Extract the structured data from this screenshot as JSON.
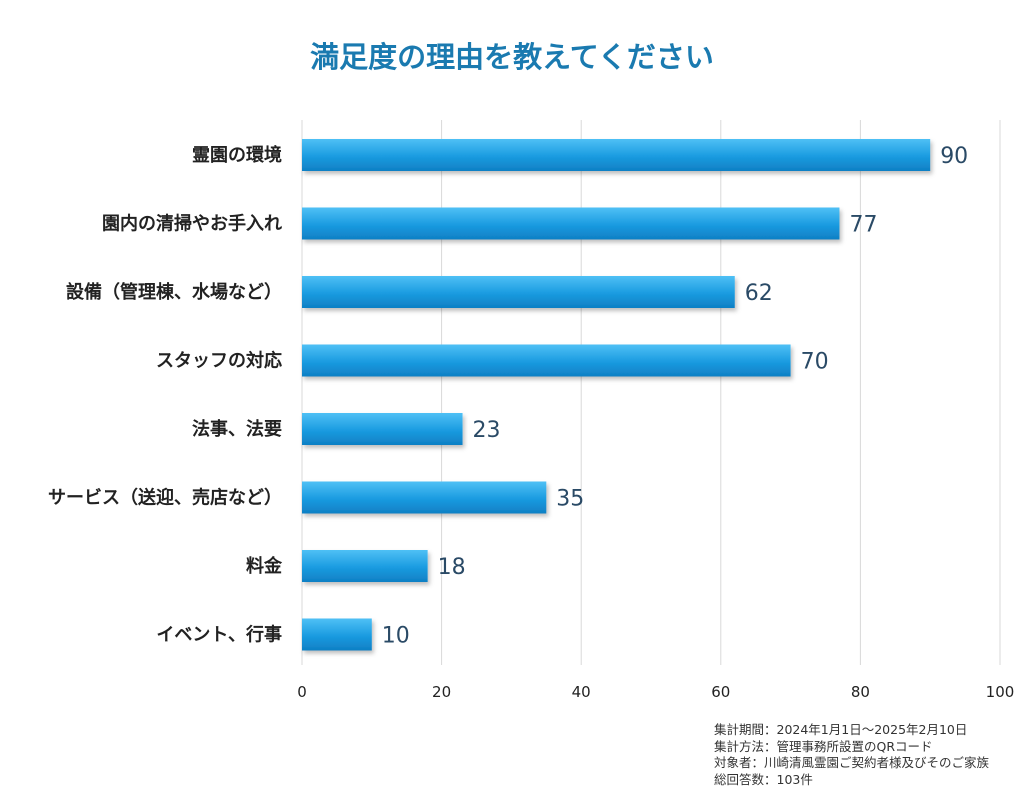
{
  "chart_data": {
    "type": "bar",
    "orientation": "horizontal",
    "title": "満足度の理由を教えてください",
    "categories": [
      "霊園の環境",
      "園内の清掃やお手入れ",
      "設備（管理棟、水場など）",
      "スタッフの対応",
      "法事、法要",
      "サービス（送迎、売店など）",
      "料金",
      "イベント、行事"
    ],
    "values": [
      90,
      77,
      62,
      70,
      23,
      35,
      18,
      10
    ],
    "xlim": [
      0,
      100
    ],
    "xticks": [
      0,
      20,
      40,
      60,
      80,
      100
    ],
    "xlabel": "",
    "ylabel": "",
    "grid": true,
    "bar_color": "#1a9be0"
  },
  "notes": [
    "集計期間：2024年1月1日～2025年2月10日",
    "集計方法：管理事務所設置のQRコード",
    "対象者：川崎清風霊園ご契約者様及びそのご家族",
    "総回答数：103件"
  ]
}
